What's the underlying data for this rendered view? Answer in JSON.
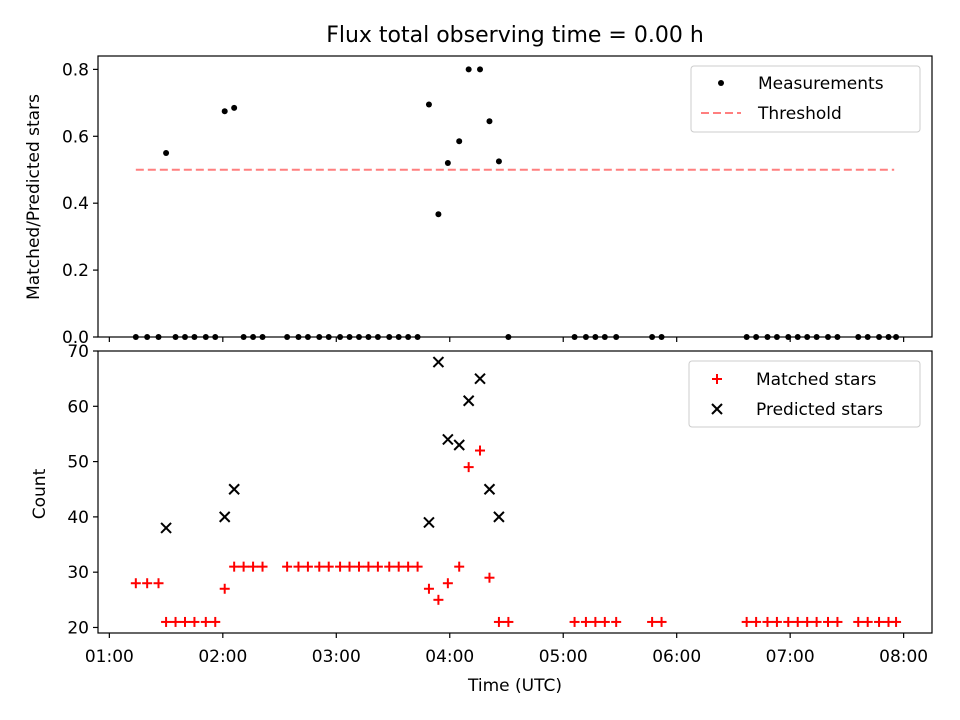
{
  "chart_data": [
    {
      "type": "scatter",
      "title": "Flux total observing time = 0.00 h",
      "xlabel": "",
      "ylabel": "Matched/Predicted stars",
      "ylim": [
        0.0,
        0.84
      ],
      "yticks": [
        0.0,
        0.2,
        0.4,
        0.6,
        0.8
      ],
      "ytick_labels": [
        "0.0",
        "0.2",
        "0.4",
        "0.6",
        "0.8"
      ],
      "legend_position": "top-right",
      "legend": [
        "Measurements",
        "Threshold"
      ],
      "threshold": {
        "value": 0.5,
        "x_start": "01:14",
        "x_end": "07:55",
        "color": "#ff7f7f"
      },
      "series": [
        {
          "name": "Measurements",
          "color": "#000000",
          "x": [
            "01:14",
            "01:20",
            "01:26",
            "01:30",
            "01:35",
            "01:40",
            "01:45",
            "01:51",
            "01:56",
            "02:01",
            "02:06",
            "02:11",
            "02:16",
            "02:21",
            "02:34",
            "02:40",
            "02:45",
            "02:51",
            "02:56",
            "03:02",
            "03:07",
            "03:12",
            "03:17",
            "03:22",
            "03:28",
            "03:33",
            "03:38",
            "03:43",
            "03:49",
            "03:54",
            "03:59",
            "04:05",
            "04:10",
            "04:16",
            "04:21",
            "04:26",
            "04:31",
            "05:06",
            "05:12",
            "05:17",
            "05:22",
            "05:28",
            "05:47",
            "05:52",
            "06:37",
            "06:42",
            "06:48",
            "06:53",
            "06:59",
            "07:04",
            "07:09",
            "07:14",
            "07:20",
            "07:25",
            "07:36",
            "07:41",
            "07:47",
            "07:52",
            "07:56"
          ],
          "y": [
            0,
            0,
            0,
            0.55,
            0,
            0,
            0,
            0,
            0,
            0.675,
            0.685,
            0,
            0,
            0,
            0,
            0,
            0,
            0,
            0,
            0,
            0,
            0,
            0,
            0,
            0,
            0,
            0,
            0,
            0.695,
            0.367,
            0.52,
            0.585,
            0.8,
            0.8,
            0.645,
            0.525,
            0,
            0,
            0,
            0,
            0,
            0,
            0,
            0,
            0,
            0,
            0,
            0,
            0,
            0,
            0,
            0,
            0,
            0,
            0,
            0,
            0,
            0,
            0
          ]
        }
      ]
    },
    {
      "type": "scatter",
      "xlabel": "Time (UTC)",
      "ylabel": "Count",
      "xlim": [
        "00:54",
        "08:15"
      ],
      "ylim": [
        19,
        70
      ],
      "yticks": [
        20,
        30,
        40,
        50,
        60,
        70
      ],
      "ytick_labels": [
        "20",
        "30",
        "40",
        "50",
        "60",
        "70"
      ],
      "xticks": [
        "01:00",
        "02:00",
        "03:00",
        "04:00",
        "05:00",
        "06:00",
        "07:00",
        "08:00"
      ],
      "xtick_labels": [
        "01:00",
        "02:00",
        "03:00",
        "04:00",
        "05:00",
        "06:00",
        "07:00",
        "08:00"
      ],
      "legend_position": "top-right",
      "legend": [
        "Matched stars",
        "Predicted stars"
      ],
      "series": [
        {
          "name": "Matched stars",
          "marker": "+",
          "color": "#ff0000",
          "x": [
            "01:14",
            "01:20",
            "01:26",
            "01:30",
            "01:35",
            "01:40",
            "01:45",
            "01:51",
            "01:56",
            "02:01",
            "02:06",
            "02:11",
            "02:16",
            "02:21",
            "02:34",
            "02:40",
            "02:45",
            "02:51",
            "02:56",
            "03:02",
            "03:07",
            "03:12",
            "03:17",
            "03:22",
            "03:28",
            "03:33",
            "03:38",
            "03:43",
            "03:49",
            "03:54",
            "03:59",
            "04:05",
            "04:10",
            "04:16",
            "04:21",
            "04:26",
            "04:31",
            "05:06",
            "05:12",
            "05:17",
            "05:22",
            "05:28",
            "05:47",
            "05:52",
            "06:37",
            "06:42",
            "06:48",
            "06:53",
            "06:59",
            "07:04",
            "07:09",
            "07:14",
            "07:20",
            "07:25",
            "07:36",
            "07:41",
            "07:47",
            "07:52",
            "07:56"
          ],
          "y": [
            28,
            28,
            28,
            21,
            21,
            21,
            21,
            21,
            21,
            27,
            31,
            31,
            31,
            31,
            31,
            31,
            31,
            31,
            31,
            31,
            31,
            31,
            31,
            31,
            31,
            31,
            31,
            31,
            27,
            25,
            28,
            31,
            49,
            52,
            29,
            21,
            21,
            21,
            21,
            21,
            21,
            21,
            21,
            21,
            21,
            21,
            21,
            21,
            21,
            21,
            21,
            21,
            21,
            21,
            21,
            21,
            21,
            21,
            21
          ]
        },
        {
          "name": "Predicted stars",
          "marker": "x",
          "color": "#000000",
          "x": [
            "01:30",
            "02:01",
            "02:06",
            "03:49",
            "03:54",
            "03:59",
            "04:05",
            "04:10",
            "04:16",
            "04:21",
            "04:26"
          ],
          "y": [
            38,
            40,
            45,
            39,
            68,
            54,
            53,
            61,
            65,
            45,
            40
          ]
        }
      ]
    }
  ]
}
